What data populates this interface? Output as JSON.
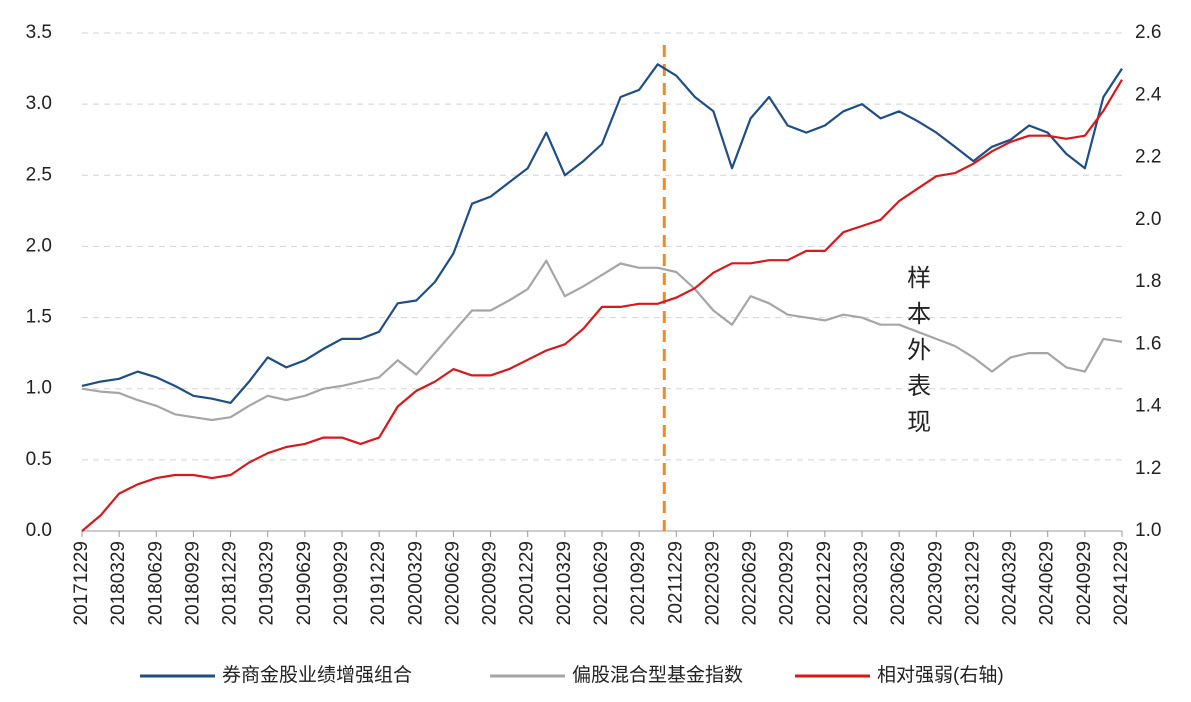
{
  "chart_data": {
    "type": "line",
    "categories": [
      "20171229",
      null,
      "20180329",
      null,
      "20180629",
      null,
      "20180929",
      null,
      "20181229",
      null,
      "20190329",
      null,
      "20190629",
      null,
      "20190929",
      null,
      "20191229",
      null,
      "20200329",
      null,
      "20200629",
      null,
      "20200929",
      null,
      "20201229",
      null,
      "20210329",
      null,
      "20210629",
      null,
      "20210929",
      null,
      "20211229",
      null,
      "20220329",
      null,
      "20220629",
      null,
      "20220929",
      null,
      "20221229",
      null,
      "20230329",
      null,
      "20230629",
      null,
      "20230929",
      null,
      "20231229",
      null,
      "20240329",
      null,
      "20240629",
      null,
      "20240929",
      null,
      "20241229"
    ],
    "series": [
      {
        "name": "券商金股业绩增强组合",
        "color": "#1f4e85",
        "values": [
          1.02,
          1.05,
          1.07,
          1.12,
          1.08,
          1.02,
          0.95,
          0.93,
          0.9,
          1.05,
          1.22,
          1.15,
          1.2,
          1.28,
          1.35,
          1.35,
          1.4,
          1.6,
          1.62,
          1.75,
          1.95,
          2.3,
          2.35,
          2.45,
          2.55,
          2.8,
          2.5,
          2.6,
          2.72,
          3.05,
          3.1,
          3.28,
          3.2,
          3.05,
          2.95,
          2.55,
          2.9,
          3.05,
          2.85,
          2.8,
          2.85,
          2.95,
          3.0,
          2.9,
          2.95,
          2.88,
          2.8,
          2.7,
          2.6,
          2.7,
          2.75,
          2.85,
          2.8,
          2.65,
          2.55,
          3.05,
          3.25
        ]
      },
      {
        "name": "偏股混合型基金指数",
        "color": "#a6a6a6",
        "values": [
          1.0,
          0.98,
          0.97,
          0.92,
          0.88,
          0.82,
          0.8,
          0.78,
          0.8,
          0.88,
          0.95,
          0.92,
          0.95,
          1.0,
          1.02,
          1.05,
          1.08,
          1.2,
          1.1,
          1.25,
          1.4,
          1.55,
          1.55,
          1.62,
          1.7,
          1.9,
          1.65,
          1.72,
          1.8,
          1.88,
          1.85,
          1.85,
          1.82,
          1.7,
          1.55,
          1.45,
          1.65,
          1.6,
          1.52,
          1.5,
          1.48,
          1.52,
          1.5,
          1.45,
          1.45,
          1.4,
          1.35,
          1.3,
          1.22,
          1.12,
          1.22,
          1.25,
          1.25,
          1.15,
          1.12,
          1.35,
          1.33
        ]
      },
      {
        "name": "相对强弱(右轴)",
        "color": "#d7191c",
        "axis": "y2",
        "values": [
          1.0,
          1.05,
          1.12,
          1.15,
          1.17,
          1.18,
          1.18,
          1.17,
          1.18,
          1.22,
          1.25,
          1.27,
          1.28,
          1.3,
          1.3,
          1.28,
          1.3,
          1.4,
          1.45,
          1.48,
          1.52,
          1.5,
          1.5,
          1.52,
          1.55,
          1.58,
          1.6,
          1.65,
          1.72,
          1.72,
          1.73,
          1.73,
          1.75,
          1.78,
          1.83,
          1.86,
          1.86,
          1.87,
          1.87,
          1.9,
          1.9,
          1.96,
          1.98,
          2.0,
          2.06,
          2.1,
          2.14,
          2.15,
          2.18,
          2.22,
          2.25,
          2.27,
          2.27,
          2.26,
          2.27,
          2.35,
          2.45
        ]
      }
    ],
    "ylim": [
      0,
      3.5
    ],
    "yticks": [
      {
        "value": 0,
        "label": "0.0"
      },
      0.5,
      {
        "value": 1,
        "label": "1.0"
      },
      1.5,
      {
        "value": 2,
        "label": "2.0"
      },
      2.5,
      {
        "value": 3,
        "label": "3.0"
      },
      3.5
    ],
    "y2lim": [
      1.0,
      2.6
    ],
    "y2ticks": [
      {
        "value": 1,
        "label": "1.0"
      },
      1.2,
      1.4,
      1.6,
      1.8,
      {
        "value": 2,
        "label": "2.0"
      },
      2.2,
      2.4,
      2.6
    ],
    "grid": true,
    "legend": "bottom",
    "divider": "20211229",
    "annotation": "样本外表现"
  }
}
